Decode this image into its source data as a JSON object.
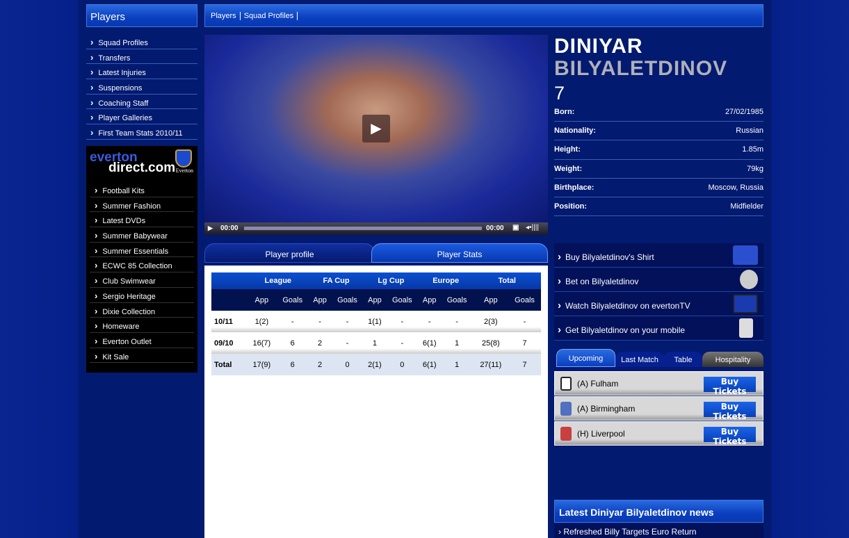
{
  "sidebar": {
    "title": "Players",
    "items": [
      "Squad Profiles",
      "Transfers",
      "Latest Injuries",
      "Suspensions",
      "Coaching Staff",
      "Player Galleries",
      "First Team Stats 2010/11"
    ]
  },
  "shop": {
    "logo_line1": "everton",
    "logo_line2": "direct.com",
    "logo_crest": "Everton",
    "items": [
      "Football Kits",
      "Summer Fashion",
      "Latest DVDs",
      "Summer Babywear",
      "Summer Essentials",
      "ECWC 85 Collection",
      "Club Swimwear",
      "Sergio Heritage",
      "Dixie Collection",
      "Homeware",
      "Everton Outlet",
      "Kit Sale"
    ]
  },
  "breadcrumb": [
    "Players",
    "Squad Profiles"
  ],
  "video": {
    "time_current": "00:00",
    "time_total": "00:00",
    "progress": 0
  },
  "tabs": [
    {
      "label": "Player profile",
      "active": false
    },
    {
      "label": "Player Stats",
      "active": true
    }
  ],
  "stats": {
    "groups": [
      "League",
      "FA Cup",
      "Lg Cup",
      "Europe",
      "Total"
    ],
    "subheaders": [
      "App",
      "Goals"
    ],
    "rows": [
      [
        "10/11",
        "1(2)",
        "-",
        "-",
        "-",
        "1(1)",
        "-",
        "-",
        "-",
        "2(3)",
        "-"
      ],
      [
        "09/10",
        "16(7)",
        "6",
        "2",
        "-",
        "1",
        "-",
        "6(1)",
        "1",
        "25(8)",
        "7"
      ],
      [
        "Total",
        "17(9)",
        "6",
        "2",
        "0",
        "2(1)",
        "0",
        "6(1)",
        "1",
        "27(11)",
        "7"
      ]
    ]
  },
  "player": {
    "first_name": "DINIYAR",
    "last_name": "BILYALETDINOV",
    "number": "7",
    "info": [
      [
        "Born:",
        "27/02/1985"
      ],
      [
        "Nationality:",
        "Russian"
      ],
      [
        "Height:",
        "1.85m"
      ],
      [
        "Weight:",
        "79kg"
      ],
      [
        "Birthplace:",
        "Moscow, Russia"
      ],
      [
        "Position:",
        "Midfielder"
      ]
    ]
  },
  "promos": [
    "Buy Bilyaletdinov's Shirt",
    "Bet on Bilyaletdinov",
    "Watch Bilyaletdinov on evertonTV",
    "Get Bilyaletdinov on your mobile"
  ],
  "fixture_tabs": [
    "Upcoming",
    "Last Match",
    "Table",
    "Hospitality"
  ],
  "fixtures": [
    {
      "team": "(A) Fulham",
      "button": "Buy Tickets"
    },
    {
      "team": "(A) Birmingham",
      "button": "Buy Tickets"
    },
    {
      "team": "(H) Liverpool",
      "button": "Buy Tickets"
    }
  ],
  "news": {
    "title": "Latest Diniyar Bilyaletdinov news",
    "items": [
      "Refreshed Billy Targets Euro Return"
    ]
  }
}
